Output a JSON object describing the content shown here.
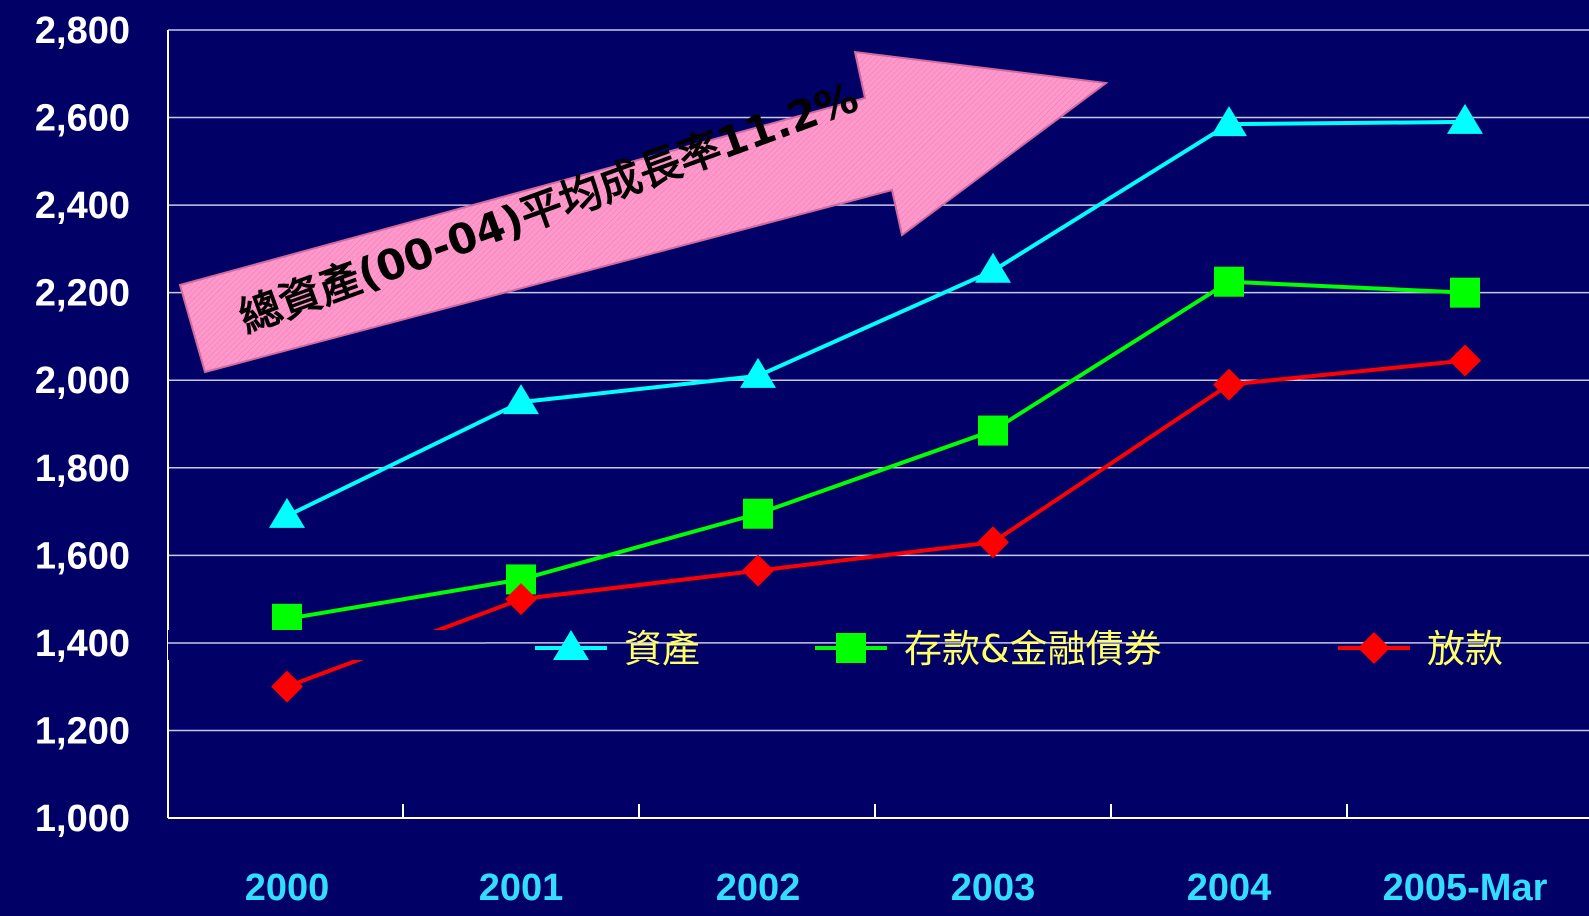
{
  "chart_data": {
    "type": "line",
    "categories": [
      "2000",
      "2001",
      "2002",
      "2003",
      "2004",
      "2005-Mar"
    ],
    "ylim": [
      1000,
      2800
    ],
    "yticks": [
      "2,800",
      "2,600",
      "2,400",
      "2,200",
      "2,000",
      "1,800",
      "1,600",
      "1,400",
      "1,200",
      "1,000"
    ],
    "ytick_values": [
      2800,
      2600,
      2400,
      2200,
      2000,
      1800,
      1600,
      1400,
      1200,
      1000
    ],
    "grid": true,
    "legend_position": "middle-right",
    "series": [
      {
        "name": "資產",
        "values": [
          1690,
          1950,
          2010,
          2250,
          2585,
          2590
        ],
        "color": "#00ffff",
        "marker": "triangle"
      },
      {
        "name": "存款&金融債券",
        "values": [
          1455,
          1545,
          1695,
          1885,
          2225,
          2200
        ],
        "color": "#00ff00",
        "marker": "square"
      },
      {
        "name": "放款",
        "values": [
          1300,
          1500,
          1565,
          1630,
          1990,
          2045
        ],
        "color": "#ff0000",
        "marker": "diamond"
      }
    ],
    "annotation": "總資產(00-04)平均成長率11.2%",
    "annotation_color": "#ff99cc"
  }
}
